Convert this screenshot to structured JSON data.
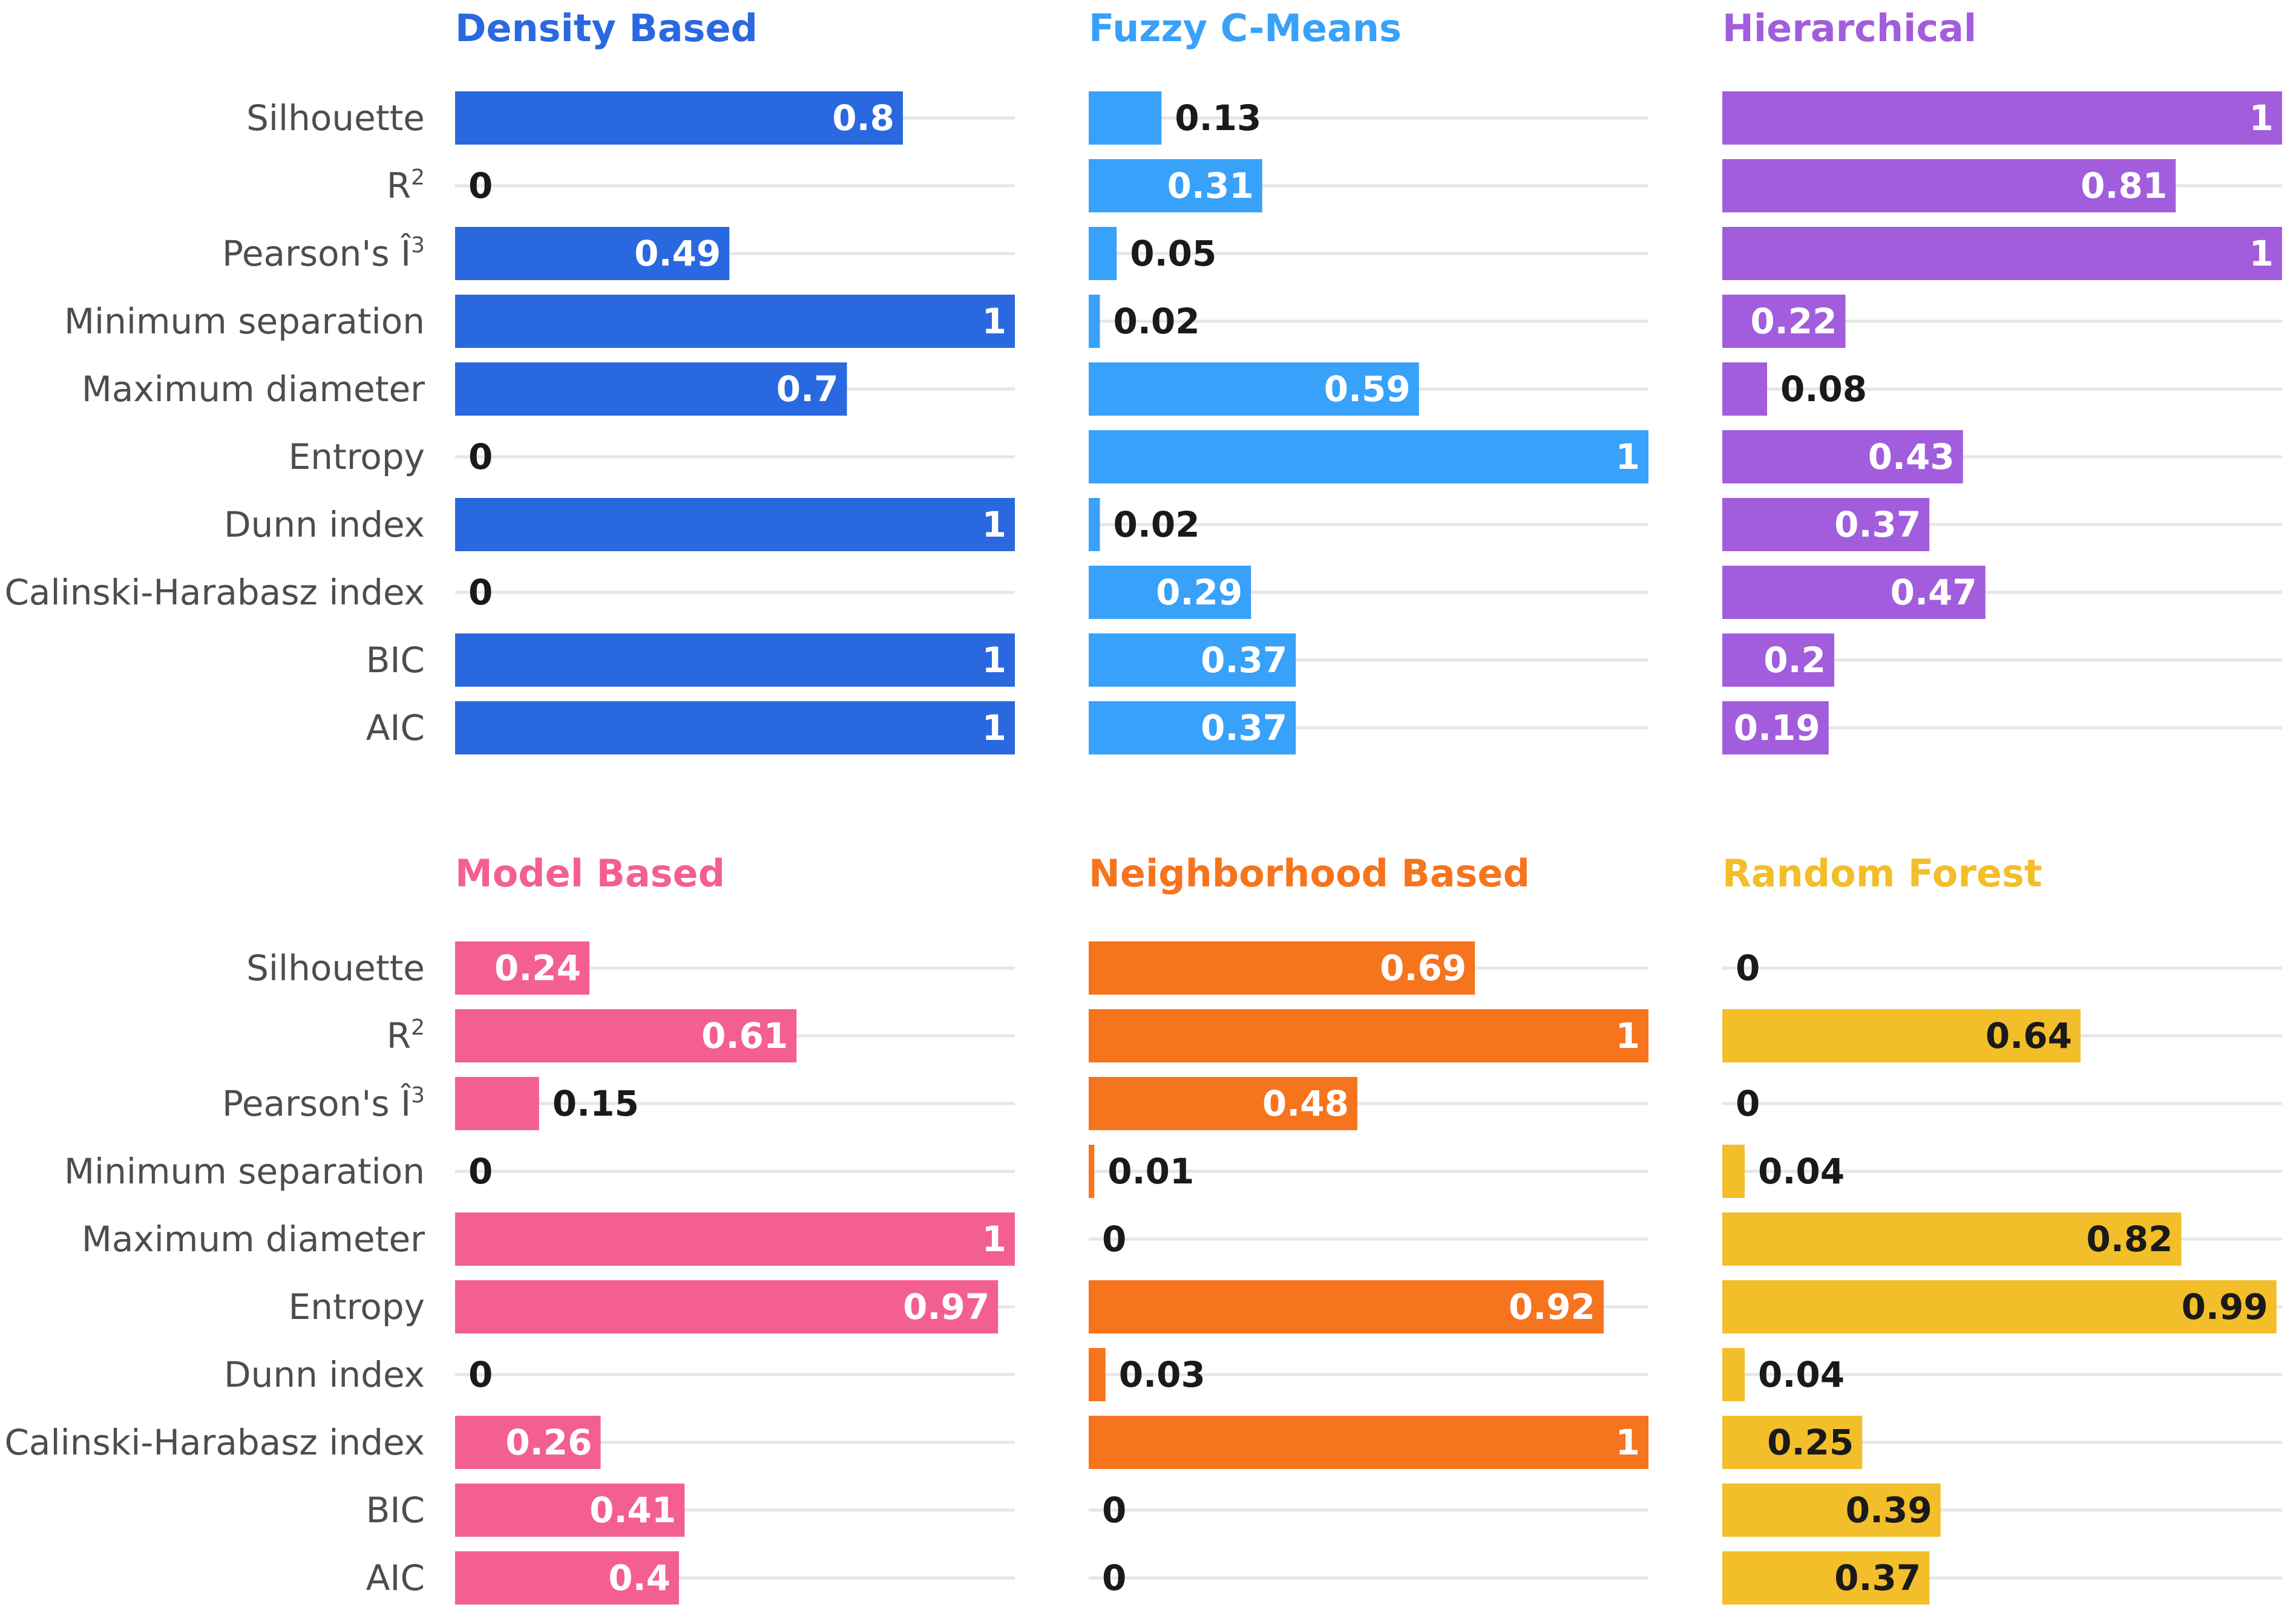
{
  "chart_data": {
    "type": "bar",
    "orientation": "horizontal",
    "layout": "small-multiples 2x3",
    "metrics": [
      "Silhouette",
      "R²",
      "Pearson's Î³",
      "Minimum separation",
      "Maximum diameter",
      "Entropy",
      "Dunn index",
      "Calinski-Harabasz index",
      "BIC",
      "AIC"
    ],
    "xlim": [
      0,
      1
    ],
    "grid": true,
    "panels": [
      {
        "title": "Density Based",
        "color": "#2a68e0",
        "value_text_inside": "#ffffff",
        "values": [
          0.8,
          0,
          0.49,
          1,
          0.7,
          0,
          1,
          0,
          1,
          1
        ],
        "labels": [
          "0.8",
          "0",
          "0.49",
          "1",
          "0.7",
          "0",
          "1",
          "0",
          "1",
          "1"
        ]
      },
      {
        "title": "Fuzzy C-Means",
        "color": "#38a1fa",
        "value_text_inside": "#ffffff",
        "values": [
          0.13,
          0.31,
          0.05,
          0.02,
          0.59,
          1,
          0.02,
          0.29,
          0.37,
          0.37
        ],
        "labels": [
          "0.13",
          "0.31",
          "0.05",
          "0.02",
          "0.59",
          "1",
          "0.02",
          "0.29",
          "0.37",
          "0.37"
        ]
      },
      {
        "title": "Hierarchical",
        "color": "#a25ddc",
        "value_text_inside": "#ffffff",
        "values": [
          1,
          0.81,
          1,
          0.22,
          0.08,
          0.43,
          0.37,
          0.47,
          0.2,
          0.19
        ],
        "labels": [
          "1",
          "0.81",
          "1",
          "0.22",
          "0.08",
          "0.43",
          "0.37",
          "0.47",
          "0.2",
          "0.19"
        ]
      },
      {
        "title": "Model Based",
        "color": "#f45f92",
        "value_text_inside": "#ffffff",
        "values": [
          0.24,
          0.61,
          0.15,
          0,
          1,
          0.97,
          0,
          0.26,
          0.41,
          0.4
        ],
        "labels": [
          "0.24",
          "0.61",
          "0.15",
          "0",
          "1",
          "0.97",
          "0",
          "0.26",
          "0.41",
          "0.4"
        ]
      },
      {
        "title": "Neighborhood Based",
        "color": "#f6741e",
        "value_text_inside": "#ffffff",
        "values": [
          0.69,
          1,
          0.48,
          0.01,
          0,
          0.92,
          0.03,
          1,
          0,
          0
        ],
        "labels": [
          "0.69",
          "1",
          "0.48",
          "0.01",
          "0",
          "0.92",
          "0.03",
          "1",
          "0",
          "0"
        ]
      },
      {
        "title": "Random Forest",
        "color": "#f2be2a",
        "value_text_inside": "#1a1a1a",
        "values": [
          0,
          0.64,
          0,
          0.04,
          0.82,
          0.99,
          0.04,
          0.25,
          0.39,
          0.37
        ],
        "labels": [
          "0",
          "0.64",
          "0",
          "0.04",
          "0.82",
          "0.99",
          "0.04",
          "0.25",
          "0.39",
          "0.37"
        ]
      }
    ]
  }
}
